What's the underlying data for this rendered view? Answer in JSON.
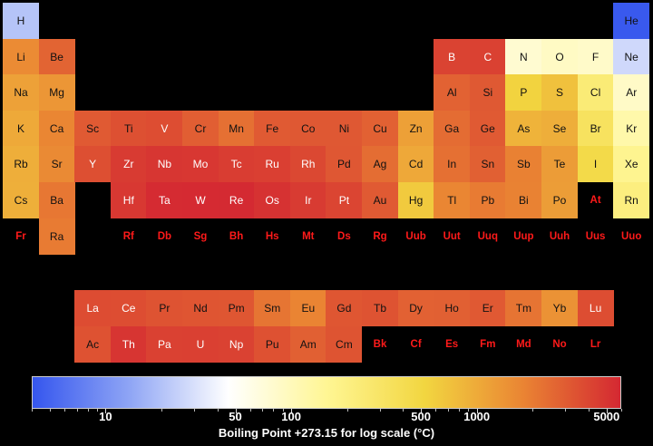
{
  "chart_data": {
    "type": "heatmap",
    "colorbar_label": "Boiling Point +273.15 for log scale (°C)",
    "colorbar_ticks": [
      "10",
      "50",
      "100",
      "500",
      "1000",
      "5000"
    ],
    "colorbar_tick_values": [
      10,
      50,
      100,
      500,
      1000,
      5000
    ],
    "scale": "log",
    "range": [
      4,
      6000
    ],
    "missing_color": "#000000",
    "missing_label_color": "#ff1a1a",
    "colors": [
      "#3556ee",
      "#90a6f5",
      "#ffffff",
      "#fff694",
      "#f2d640",
      "#ea8533",
      "#d42832"
    ],
    "elements": [
      {
        "symbol": "H",
        "row": 0,
        "col": 0,
        "value": 20.3
      },
      {
        "symbol": "He",
        "row": 0,
        "col": 17,
        "value": 4.2
      },
      {
        "symbol": "Li",
        "row": 1,
        "col": 0,
        "value": 1615
      },
      {
        "symbol": "Be",
        "row": 1,
        "col": 1,
        "value": 2742
      },
      {
        "symbol": "B",
        "row": 1,
        "col": 12,
        "value": 4200
      },
      {
        "symbol": "C",
        "row": 1,
        "col": 13,
        "value": 4300
      },
      {
        "symbol": "N",
        "row": 1,
        "col": 14,
        "value": 77
      },
      {
        "symbol": "O",
        "row": 1,
        "col": 15,
        "value": 90
      },
      {
        "symbol": "F",
        "row": 1,
        "col": 16,
        "value": 85
      },
      {
        "symbol": "Ne",
        "row": 1,
        "col": 17,
        "value": 27
      },
      {
        "symbol": "Na",
        "row": 2,
        "col": 0,
        "value": 1156
      },
      {
        "symbol": "Mg",
        "row": 2,
        "col": 1,
        "value": 1363
      },
      {
        "symbol": "Al",
        "row": 2,
        "col": 12,
        "value": 2792
      },
      {
        "symbol": "Si",
        "row": 2,
        "col": 13,
        "value": 3173
      },
      {
        "symbol": "P",
        "row": 2,
        "col": 14,
        "value": 550
      },
      {
        "symbol": "S",
        "row": 2,
        "col": 15,
        "value": 718
      },
      {
        "symbol": "Cl",
        "row": 2,
        "col": 16,
        "value": 239
      },
      {
        "symbol": "Ar",
        "row": 2,
        "col": 17,
        "value": 87
      },
      {
        "symbol": "K",
        "row": 3,
        "col": 0,
        "value": 1032
      },
      {
        "symbol": "Ca",
        "row": 3,
        "col": 1,
        "value": 1757
      },
      {
        "symbol": "Sc",
        "row": 3,
        "col": 2,
        "value": 3103
      },
      {
        "symbol": "Ti",
        "row": 3,
        "col": 3,
        "value": 3560
      },
      {
        "symbol": "V",
        "row": 3,
        "col": 4,
        "value": 3680
      },
      {
        "symbol": "Cr",
        "row": 3,
        "col": 5,
        "value": 2944
      },
      {
        "symbol": "Mn",
        "row": 3,
        "col": 6,
        "value": 2334
      },
      {
        "symbol": "Fe",
        "row": 3,
        "col": 7,
        "value": 3134
      },
      {
        "symbol": "Co",
        "row": 3,
        "col": 8,
        "value": 3200
      },
      {
        "symbol": "Ni",
        "row": 3,
        "col": 9,
        "value": 3186
      },
      {
        "symbol": "Cu",
        "row": 3,
        "col": 10,
        "value": 2835
      },
      {
        "symbol": "Zn",
        "row": 3,
        "col": 11,
        "value": 1180
      },
      {
        "symbol": "Ga",
        "row": 3,
        "col": 12,
        "value": 2477
      },
      {
        "symbol": "Ge",
        "row": 3,
        "col": 13,
        "value": 3106
      },
      {
        "symbol": "As",
        "row": 3,
        "col": 14,
        "value": 887
      },
      {
        "symbol": "Se",
        "row": 3,
        "col": 15,
        "value": 958
      },
      {
        "symbol": "Br",
        "row": 3,
        "col": 16,
        "value": 332
      },
      {
        "symbol": "Kr",
        "row": 3,
        "col": 17,
        "value": 120
      },
      {
        "symbol": "Rb",
        "row": 4,
        "col": 0,
        "value": 961
      },
      {
        "symbol": "Sr",
        "row": 4,
        "col": 1,
        "value": 1655
      },
      {
        "symbol": "Y",
        "row": 4,
        "col": 2,
        "value": 3609
      },
      {
        "symbol": "Zr",
        "row": 4,
        "col": 3,
        "value": 4682
      },
      {
        "symbol": "Nb",
        "row": 4,
        "col": 4,
        "value": 5017
      },
      {
        "symbol": "Mo",
        "row": 4,
        "col": 5,
        "value": 4912
      },
      {
        "symbol": "Tc",
        "row": 4,
        "col": 6,
        "value": 4538
      },
      {
        "symbol": "Ru",
        "row": 4,
        "col": 7,
        "value": 4423
      },
      {
        "symbol": "Rh",
        "row": 4,
        "col": 8,
        "value": 3968
      },
      {
        "symbol": "Pd",
        "row": 4,
        "col": 9,
        "value": 3236
      },
      {
        "symbol": "Ag",
        "row": 4,
        "col": 10,
        "value": 2435
      },
      {
        "symbol": "Cd",
        "row": 4,
        "col": 11,
        "value": 1040
      },
      {
        "symbol": "In",
        "row": 4,
        "col": 12,
        "value": 2345
      },
      {
        "symbol": "Sn",
        "row": 4,
        "col": 13,
        "value": 2875
      },
      {
        "symbol": "Sb",
        "row": 4,
        "col": 14,
        "value": 1860
      },
      {
        "symbol": "Te",
        "row": 4,
        "col": 15,
        "value": 1261
      },
      {
        "symbol": "I",
        "row": 4,
        "col": 16,
        "value": 457
      },
      {
        "symbol": "Xe",
        "row": 4,
        "col": 17,
        "value": 165
      },
      {
        "symbol": "Cs",
        "row": 5,
        "col": 0,
        "value": 944
      },
      {
        "symbol": "Ba",
        "row": 5,
        "col": 1,
        "value": 2143
      },
      {
        "symbol": "Hf",
        "row": 5,
        "col": 3,
        "value": 4876
      },
      {
        "symbol": "Ta",
        "row": 5,
        "col": 4,
        "value": 5731
      },
      {
        "symbol": "W",
        "row": 5,
        "col": 5,
        "value": 5828
      },
      {
        "symbol": "Re",
        "row": 5,
        "col": 6,
        "value": 5869
      },
      {
        "symbol": "Os",
        "row": 5,
        "col": 7,
        "value": 5285
      },
      {
        "symbol": "Ir",
        "row": 5,
        "col": 8,
        "value": 4701
      },
      {
        "symbol": "Pt",
        "row": 5,
        "col": 9,
        "value": 4098
      },
      {
        "symbol": "Au",
        "row": 5,
        "col": 10,
        "value": 3129
      },
      {
        "symbol": "Hg",
        "row": 5,
        "col": 11,
        "value": 630
      },
      {
        "symbol": "Tl",
        "row": 5,
        "col": 12,
        "value": 1746
      },
      {
        "symbol": "Pb",
        "row": 5,
        "col": 13,
        "value": 2022
      },
      {
        "symbol": "Bi",
        "row": 5,
        "col": 14,
        "value": 1837
      },
      {
        "symbol": "Po",
        "row": 5,
        "col": 15,
        "value": 1235
      },
      {
        "symbol": "At",
        "row": 5,
        "col": 16,
        "value": null
      },
      {
        "symbol": "Rn",
        "row": 5,
        "col": 17,
        "value": 211
      },
      {
        "symbol": "Fr",
        "row": 6,
        "col": 0,
        "value": null
      },
      {
        "symbol": "Ra",
        "row": 6,
        "col": 1,
        "value": 2010
      },
      {
        "symbol": "Rf",
        "row": 6,
        "col": 3,
        "value": null
      },
      {
        "symbol": "Db",
        "row": 6,
        "col": 4,
        "value": null
      },
      {
        "symbol": "Sg",
        "row": 6,
        "col": 5,
        "value": null
      },
      {
        "symbol": "Bh",
        "row": 6,
        "col": 6,
        "value": null
      },
      {
        "symbol": "Hs",
        "row": 6,
        "col": 7,
        "value": null
      },
      {
        "symbol": "Mt",
        "row": 6,
        "col": 8,
        "value": null
      },
      {
        "symbol": "Ds",
        "row": 6,
        "col": 9,
        "value": null
      },
      {
        "symbol": "Rg",
        "row": 6,
        "col": 10,
        "value": null
      },
      {
        "symbol": "Uub",
        "row": 6,
        "col": 11,
        "value": null
      },
      {
        "symbol": "Uut",
        "row": 6,
        "col": 12,
        "value": null
      },
      {
        "symbol": "Uuq",
        "row": 6,
        "col": 13,
        "value": null
      },
      {
        "symbol": "Uup",
        "row": 6,
        "col": 14,
        "value": null
      },
      {
        "symbol": "Uuh",
        "row": 6,
        "col": 15,
        "value": null
      },
      {
        "symbol": "Uus",
        "row": 6,
        "col": 16,
        "value": null
      },
      {
        "symbol": "Uuo",
        "row": 6,
        "col": 17,
        "value": null
      },
      {
        "symbol": "La",
        "row": 8,
        "col": 2,
        "value": 3737
      },
      {
        "symbol": "Ce",
        "row": 8,
        "col": 3,
        "value": 3716
      },
      {
        "symbol": "Pr",
        "row": 8,
        "col": 4,
        "value": 3403
      },
      {
        "symbol": "Nd",
        "row": 8,
        "col": 5,
        "value": 3347
      },
      {
        "symbol": "Pm",
        "row": 8,
        "col": 6,
        "value": 3273
      },
      {
        "symbol": "Sm",
        "row": 8,
        "col": 7,
        "value": 2173
      },
      {
        "symbol": "Eu",
        "row": 8,
        "col": 8,
        "value": 1802
      },
      {
        "symbol": "Gd",
        "row": 8,
        "col": 9,
        "value": 3273
      },
      {
        "symbol": "Tb",
        "row": 8,
        "col": 10,
        "value": 3396
      },
      {
        "symbol": "Dy",
        "row": 8,
        "col": 11,
        "value": 2840
      },
      {
        "symbol": "Ho",
        "row": 8,
        "col": 12,
        "value": 2873
      },
      {
        "symbol": "Er",
        "row": 8,
        "col": 13,
        "value": 3141
      },
      {
        "symbol": "Tm",
        "row": 8,
        "col": 14,
        "value": 2223
      },
      {
        "symbol": "Yb",
        "row": 8,
        "col": 15,
        "value": 1469
      },
      {
        "symbol": "Lu",
        "row": 8,
        "col": 16,
        "value": 3675
      },
      {
        "symbol": "Ac",
        "row": 9,
        "col": 2,
        "value": 3471
      },
      {
        "symbol": "Th",
        "row": 9,
        "col": 3,
        "value": 5061
      },
      {
        "symbol": "Pa",
        "row": 9,
        "col": 4,
        "value": 4300
      },
      {
        "symbol": "U",
        "row": 9,
        "col": 5,
        "value": 4404
      },
      {
        "symbol": "Np",
        "row": 9,
        "col": 6,
        "value": 4273
      },
      {
        "symbol": "Pu",
        "row": 9,
        "col": 7,
        "value": 3501
      },
      {
        "symbol": "Am",
        "row": 9,
        "col": 8,
        "value": 2880
      },
      {
        "symbol": "Cm",
        "row": 9,
        "col": 9,
        "value": 3383
      },
      {
        "symbol": "Bk",
        "row": 9,
        "col": 10,
        "value": null
      },
      {
        "symbol": "Cf",
        "row": 9,
        "col": 11,
        "value": null
      },
      {
        "symbol": "Es",
        "row": 9,
        "col": 12,
        "value": null
      },
      {
        "symbol": "Fm",
        "row": 9,
        "col": 13,
        "value": null
      },
      {
        "symbol": "Md",
        "row": 9,
        "col": 14,
        "value": null
      },
      {
        "symbol": "No",
        "row": 9,
        "col": 15,
        "value": null
      },
      {
        "symbol": "Lr",
        "row": 9,
        "col": 16,
        "value": null
      }
    ]
  }
}
